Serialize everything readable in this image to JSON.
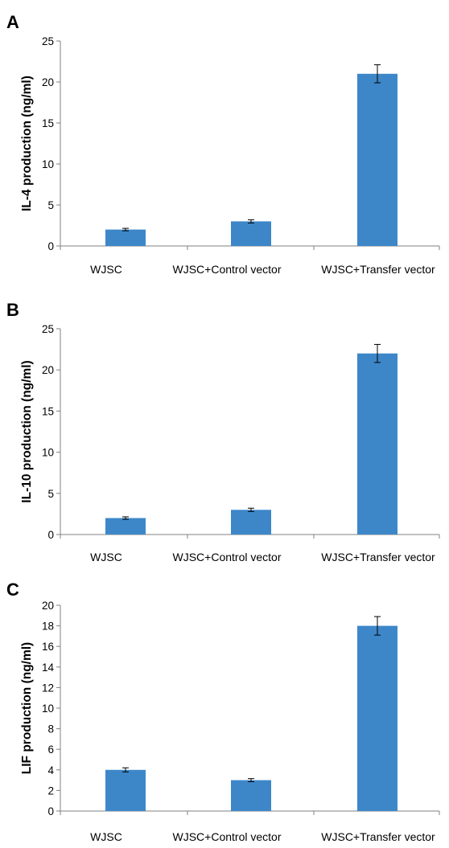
{
  "colors": {
    "bar": "#3d87c9",
    "axis": "#808080",
    "error": "#000000"
  },
  "chart_data": [
    {
      "type": "bar",
      "panel": "A",
      "ylabel": "IL-4 production (ng/ml)",
      "categories": [
        "WJSC",
        "WJSC+Control vector",
        "WJSC+Transfer vector"
      ],
      "values": [
        2.0,
        3.0,
        21.0
      ],
      "errors": [
        0.15,
        0.2,
        1.1
      ],
      "ylim": [
        0,
        25
      ],
      "yticks": [
        0,
        5,
        10,
        15,
        20,
        25
      ],
      "grid": false,
      "legend": false
    },
    {
      "type": "bar",
      "panel": "B",
      "ylabel": "IL-10 production (ng/ml)",
      "categories": [
        "WJSC",
        "WJSC+Control vector",
        "WJSC+Transfer vector"
      ],
      "values": [
        2.0,
        3.0,
        22.0
      ],
      "errors": [
        0.15,
        0.2,
        1.1
      ],
      "ylim": [
        0,
        25
      ],
      "yticks": [
        0,
        5,
        10,
        15,
        20,
        25
      ],
      "grid": false,
      "legend": false
    },
    {
      "type": "bar",
      "panel": "C",
      "ylabel": "LIF production (ng/ml)",
      "categories": [
        "WJSC",
        "WJSC+Control vector",
        "WJSC+Transfer vector"
      ],
      "values": [
        4.0,
        3.0,
        18.0
      ],
      "errors": [
        0.2,
        0.15,
        0.9
      ],
      "ylim": [
        0,
        20
      ],
      "yticks": [
        0,
        2,
        4,
        6,
        8,
        10,
        12,
        14,
        16,
        18,
        20
      ],
      "grid": false,
      "legend": false
    }
  ]
}
